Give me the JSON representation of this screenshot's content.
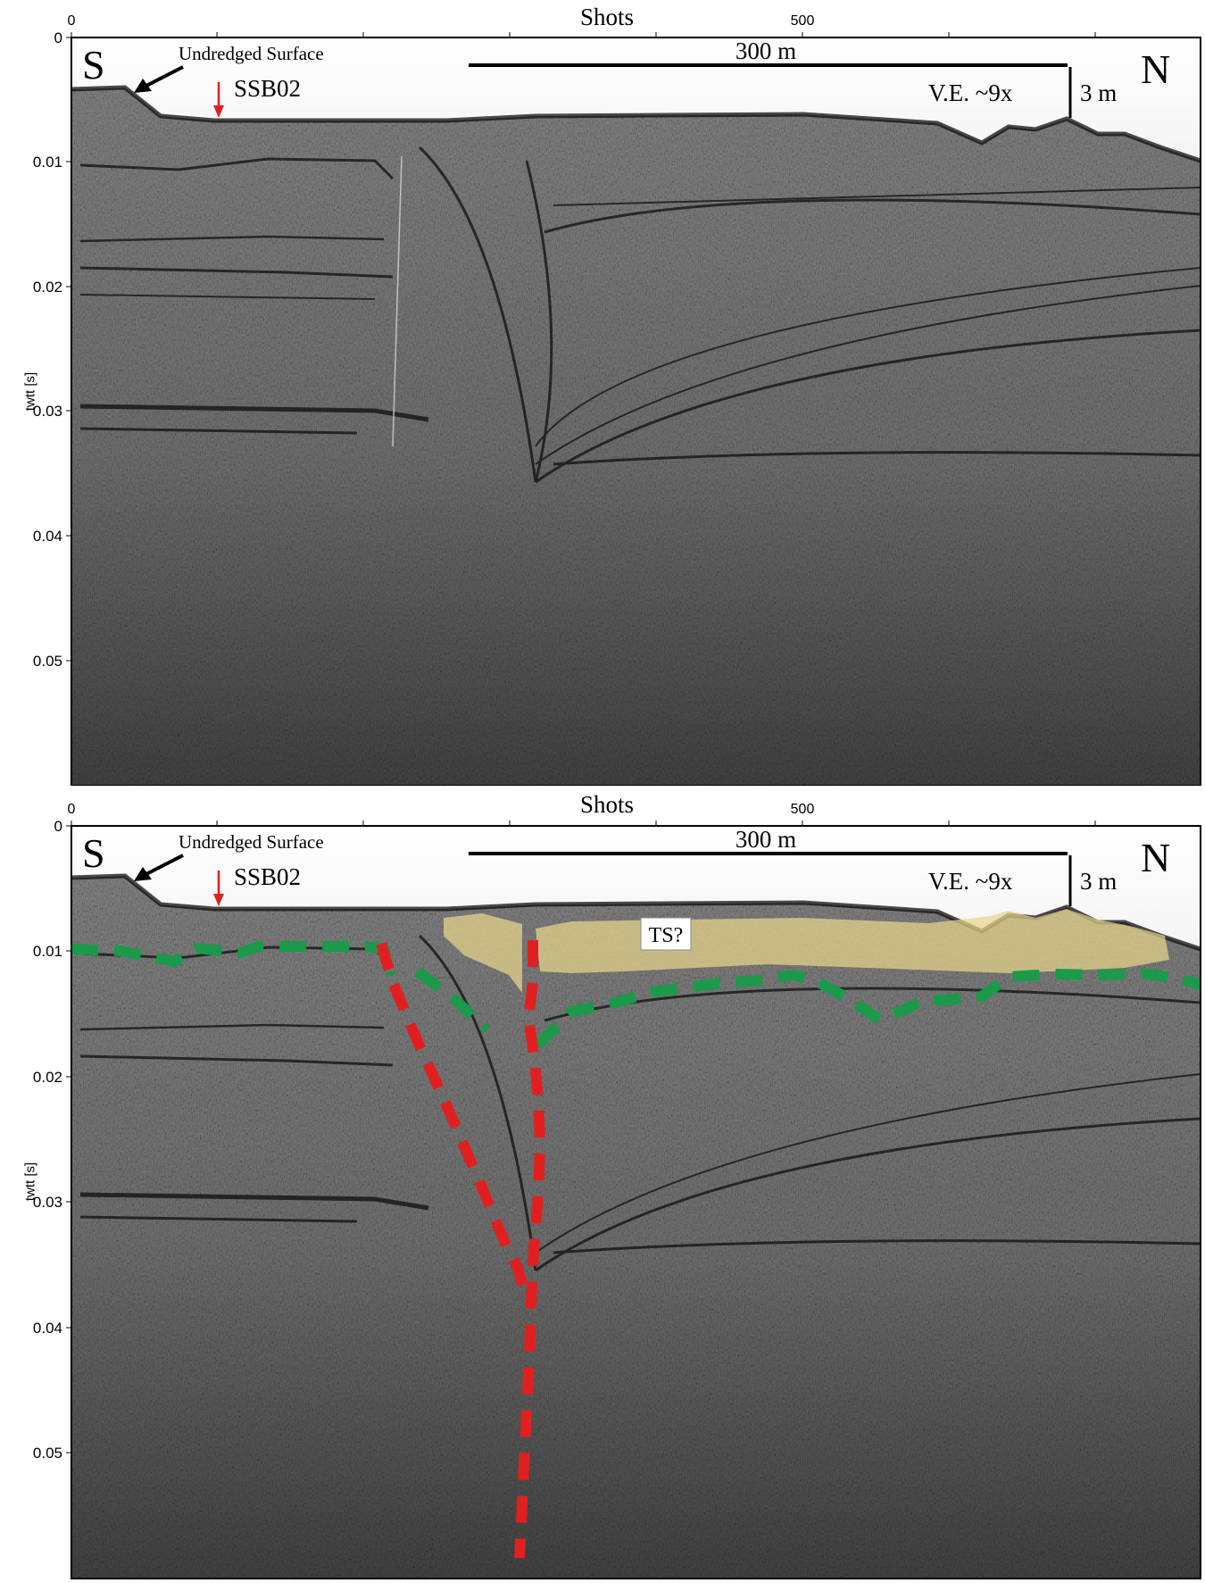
{
  "panels": [
    {
      "id": "raw",
      "x_axis": {
        "label": "Shots",
        "ticks": [
          {
            "value": 0,
            "label": "0"
          },
          {
            "value": 500,
            "label": "500"
          }
        ],
        "max_shots": 770
      },
      "y_axis": {
        "label": "twtt [s]",
        "ticks": [
          {
            "value": 0,
            "label": "0"
          },
          {
            "value": 0.01,
            "label": "0.01"
          },
          {
            "value": 0.02,
            "label": "0.02"
          },
          {
            "value": 0.03,
            "label": "0.03"
          },
          {
            "value": 0.04,
            "label": "0.04"
          },
          {
            "value": 0.05,
            "label": "0.05"
          }
        ],
        "max": 0.06
      },
      "annotations": {
        "south": "S",
        "north": "N",
        "undredged": "Undredged Surface",
        "core": "SSB02",
        "scale_bar": "300 m",
        "vertical_exaggeration": "V.E. ~9x",
        "vertical_scale": "3 m"
      },
      "interpretation": null
    },
    {
      "id": "interpreted",
      "x_axis": {
        "label": "Shots",
        "ticks": [
          {
            "value": 0,
            "label": "0"
          },
          {
            "value": 500,
            "label": "500"
          }
        ],
        "max_shots": 770
      },
      "y_axis": {
        "label": "twtt [s]",
        "ticks": [
          {
            "value": 0,
            "label": "0"
          },
          {
            "value": 0.01,
            "label": "0.01"
          },
          {
            "value": 0.02,
            "label": "0.02"
          },
          {
            "value": 0.03,
            "label": "0.03"
          },
          {
            "value": 0.04,
            "label": "0.04"
          },
          {
            "value": 0.05,
            "label": "0.05"
          }
        ],
        "max": 0.06
      },
      "annotations": {
        "south": "S",
        "north": "N",
        "undredged": "Undredged Surface",
        "core": "SSB02",
        "scale_bar": "300 m",
        "vertical_exaggeration": "V.E. ~9x",
        "vertical_scale": "3 m"
      },
      "interpretation": {
        "zone_label": "TS?",
        "colors": {
          "fault": "#e02020",
          "horizon": "#1a9a4a",
          "zone_fill": "#e8d58a"
        }
      }
    }
  ],
  "colors": {
    "seafloor": "#1a1a1a",
    "frame": "#000000",
    "core_arrow": "#e02020"
  }
}
